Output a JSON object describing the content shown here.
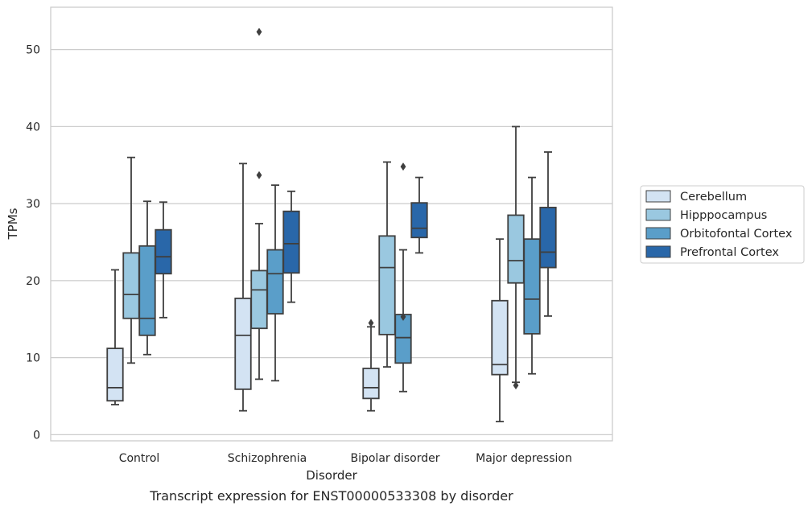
{
  "caption": "Transcript expression for ENST00000533308 by disorder",
  "chart_data": {
    "type": "box",
    "xlabel": "Disorder",
    "ylabel": "TPMs",
    "ylim": [
      -0.8,
      55.5
    ],
    "yticks": [
      0,
      10,
      20,
      30,
      40,
      50
    ],
    "grid": "horizontal",
    "legend_placement": "right",
    "categories": [
      "Control",
      "Schizophrenia",
      "Bipolar disorder",
      "Major depression"
    ],
    "series": [
      {
        "name": "Cerebellum",
        "color": "#d3e3f3",
        "boxes": [
          {
            "whisker_low": 3.9,
            "q1": 4.4,
            "median": 6.1,
            "q3": 11.2,
            "whisker_high": 21.4,
            "outliers": []
          },
          {
            "whisker_low": 3.1,
            "q1": 5.9,
            "median": 12.9,
            "q3": 17.7,
            "whisker_high": 35.2,
            "outliers": []
          },
          {
            "whisker_low": 3.1,
            "q1": 4.7,
            "median": 6.1,
            "q3": 8.6,
            "whisker_high": 14.0,
            "outliers": [
              14.5
            ]
          },
          {
            "whisker_low": 1.7,
            "q1": 7.8,
            "median": 9.1,
            "q3": 17.4,
            "whisker_high": 25.4,
            "outliers": []
          }
        ]
      },
      {
        "name": "Hipppocampus",
        "color": "#9ac8e0",
        "boxes": [
          {
            "whisker_low": 9.3,
            "q1": 15.1,
            "median": 18.2,
            "q3": 23.6,
            "whisker_high": 36.0,
            "outliers": []
          },
          {
            "whisker_low": 7.2,
            "q1": 13.8,
            "median": 18.8,
            "q3": 21.3,
            "whisker_high": 27.4,
            "outliers": [
              33.7,
              52.3
            ]
          },
          {
            "whisker_low": 8.8,
            "q1": 13.0,
            "median": 21.7,
            "q3": 25.8,
            "whisker_high": 35.4,
            "outliers": []
          },
          {
            "whisker_low": 6.8,
            "q1": 19.7,
            "median": 22.6,
            "q3": 28.5,
            "whisker_high": 40.0,
            "outliers": [
              6.4
            ]
          }
        ]
      },
      {
        "name": "Orbitofontal Cortex",
        "color": "#5a9ec9",
        "boxes": [
          {
            "whisker_low": 10.4,
            "q1": 12.9,
            "median": 15.1,
            "q3": 24.5,
            "whisker_high": 30.3,
            "outliers": []
          },
          {
            "whisker_low": 7.0,
            "q1": 15.7,
            "median": 20.9,
            "q3": 24.0,
            "whisker_high": 32.4,
            "outliers": []
          },
          {
            "whisker_low": 5.6,
            "q1": 9.3,
            "median": 12.6,
            "q3": 15.6,
            "whisker_high": 24.0,
            "outliers": [
              15.3,
              34.8
            ]
          },
          {
            "whisker_low": 7.9,
            "q1": 13.1,
            "median": 17.6,
            "q3": 25.4,
            "whisker_high": 33.4,
            "outliers": []
          }
        ]
      },
      {
        "name": "Prefrontal Cortex",
        "color": "#2967a9",
        "boxes": [
          {
            "whisker_low": 15.2,
            "q1": 20.9,
            "median": 23.1,
            "q3": 26.6,
            "whisker_high": 30.2,
            "outliers": []
          },
          {
            "whisker_low": 17.2,
            "q1": 21.0,
            "median": 24.8,
            "q3": 29.0,
            "whisker_high": 31.6,
            "outliers": []
          },
          {
            "whisker_low": 23.6,
            "q1": 25.6,
            "median": 26.8,
            "q3": 30.1,
            "whisker_high": 33.4,
            "outliers": []
          },
          {
            "whisker_low": 15.4,
            "q1": 21.7,
            "median": 23.7,
            "q3": 29.5,
            "whisker_high": 36.7,
            "outliers": []
          }
        ]
      }
    ]
  }
}
